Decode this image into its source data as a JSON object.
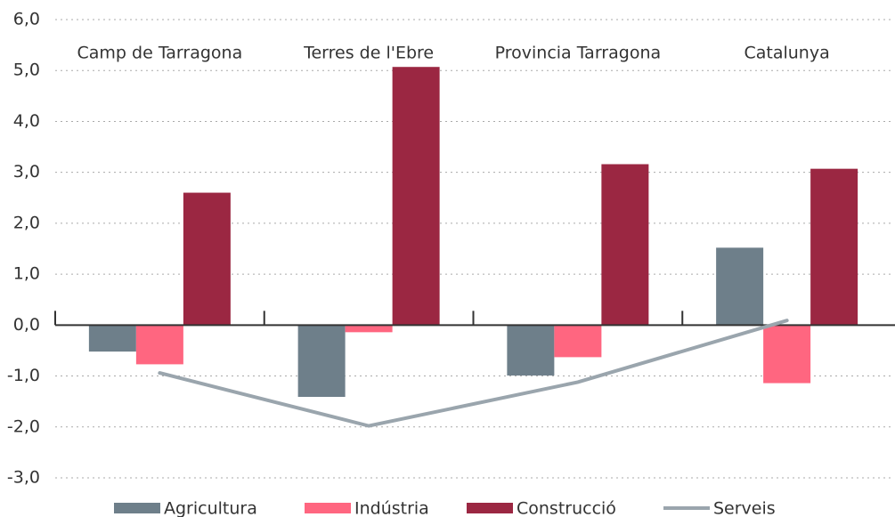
{
  "chart_data": {
    "type": "bar",
    "categories": [
      "Camp de Tarragona",
      "Terres de l'Ebre",
      "Provincia Tarragona",
      "Catalunya"
    ],
    "series": [
      {
        "name": "Agricultura",
        "color": "#6e7f8a",
        "values": [
          -0.52,
          -1.41,
          -0.99,
          1.52
        ]
      },
      {
        "name": "Indústria",
        "color": "#ff6680",
        "values": [
          -0.77,
          -0.14,
          -0.63,
          -1.14
        ]
      },
      {
        "name": "Construcció",
        "color": "#9b2742",
        "values": [
          2.6,
          5.07,
          3.16,
          3.07
        ]
      },
      {
        "name": "Serveis",
        "color": "#9aa5ad",
        "type": "line",
        "values": [
          -0.94,
          -1.98,
          -1.12,
          0.09
        ]
      }
    ],
    "ylim": [
      -3,
      6
    ],
    "yticks": [
      {
        "value": -3,
        "label": "-3,0"
      },
      {
        "value": -2,
        "label": "-2,0"
      },
      {
        "value": -1,
        "label": "-1,0"
      },
      {
        "value": 0,
        "label": "0,0"
      },
      {
        "value": 1,
        "label": "1,0"
      },
      {
        "value": 2,
        "label": "2,0"
      },
      {
        "value": 3,
        "label": "3,0"
      },
      {
        "value": 4,
        "label": "4,0"
      },
      {
        "value": 5,
        "label": "5,0"
      },
      {
        "value": 6,
        "label": "6,0"
      }
    ],
    "grid": true,
    "legend": "bottom"
  }
}
